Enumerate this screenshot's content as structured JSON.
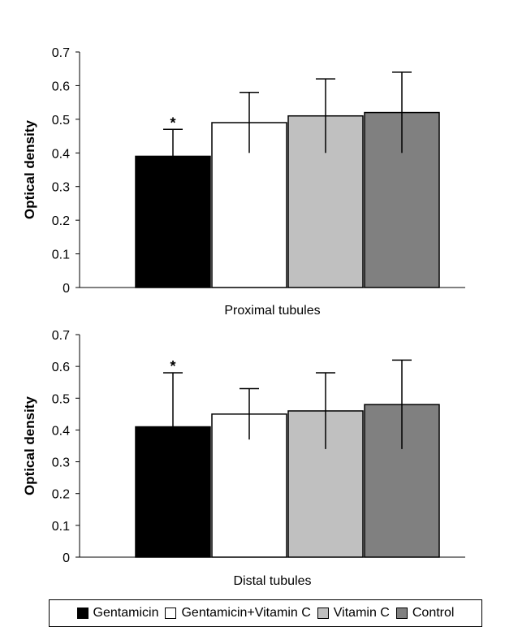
{
  "legend_items": [
    "Gentamicin",
    "Gentamicin+Vitamin C",
    "Vitamin C",
    "Control"
  ],
  "colors": {
    "Gentamicin": "#000000",
    "Gentamicin+Vitamin C": "#ffffff",
    "Vitamin C": "#c0c0c0",
    "Control": "#808080"
  },
  "chart_data": [
    {
      "type": "bar",
      "xlabel": "Proximal tubules",
      "ylabel": "Optical density",
      "ylim": [
        0,
        0.7
      ],
      "yticks": [
        "0",
        "0.1",
        "0.2",
        "0.3",
        "0.4",
        "0.5",
        "0.6",
        "0.7"
      ],
      "categories": [
        "Gentamicin",
        "Gentamicin+Vitamin C",
        "Vitamin C",
        "Control"
      ],
      "values": [
        0.39,
        0.49,
        0.51,
        0.52
      ],
      "error_high": [
        0.47,
        0.58,
        0.62,
        0.64
      ],
      "error_low": [
        0.39,
        0.4,
        0.4,
        0.4
      ],
      "annotations": [
        {
          "category": "Gentamicin",
          "text": "*"
        }
      ],
      "grid": false
    },
    {
      "type": "bar",
      "xlabel": "Distal tubules",
      "ylabel": "Optical density",
      "ylim": [
        0,
        0.7
      ],
      "yticks": [
        "0",
        "0.1",
        "0.2",
        "0.3",
        "0.4",
        "0.5",
        "0.6",
        "0.7"
      ],
      "categories": [
        "Gentamicin",
        "Gentamicin+Vitamin C",
        "Vitamin C",
        "Control"
      ],
      "values": [
        0.41,
        0.45,
        0.46,
        0.48
      ],
      "error_high": [
        0.58,
        0.53,
        0.58,
        0.62
      ],
      "error_low": [
        0.41,
        0.37,
        0.34,
        0.34
      ],
      "annotations": [
        {
          "category": "Gentamicin",
          "text": "*"
        }
      ],
      "grid": false
    }
  ]
}
